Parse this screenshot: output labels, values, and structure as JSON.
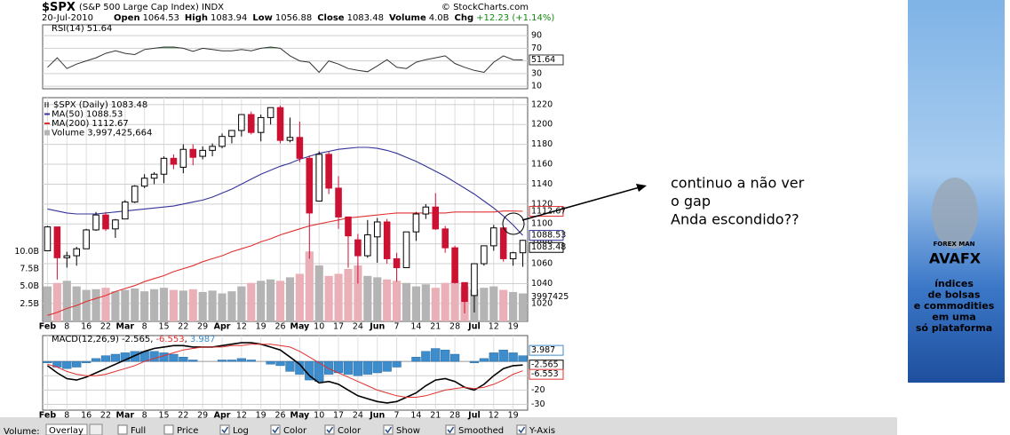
{
  "header": {
    "symbol": "$SPX",
    "name": "(S&P 500 Large Cap Index) INDX",
    "copyright": "© StockCharts.com",
    "date": "20-Jul-2010",
    "quote": [
      {
        "label": "Open",
        "value": "1064.53"
      },
      {
        "label": "High",
        "value": "1083.94"
      },
      {
        "label": "Low",
        "value": "1056.88"
      },
      {
        "label": "Close",
        "value": "1083.48"
      },
      {
        "label": "Volume",
        "value": "4.0B"
      }
    ],
    "change_label": "Chg",
    "change": "+12.23 (+1.14%)"
  },
  "chart_data": [
    {
      "type": "rsi",
      "name": "RSI(14)",
      "color": "#333333",
      "ylim": [
        6,
        107
      ],
      "yticks": [
        10,
        30,
        50,
        70,
        90
      ],
      "grid": true,
      "values": [
        40,
        55,
        38,
        45,
        50,
        55,
        62,
        66,
        62,
        60,
        68,
        70,
        72,
        72,
        70,
        65,
        70,
        68,
        66,
        66,
        68,
        66,
        70,
        72,
        70,
        58,
        50,
        48,
        32,
        50,
        45,
        38,
        35,
        33,
        42,
        52,
        40,
        38,
        48,
        52,
        55,
        58,
        46,
        40,
        35,
        32,
        48,
        58,
        52,
        51.64
      ]
    },
    {
      "type": "candlestick",
      "ylim": [
        1002,
        1227
      ],
      "yticks": [
        1020,
        1040,
        1060,
        1080,
        1100,
        1120,
        1140,
        1160,
        1180,
        1200,
        1220
      ],
      "grid": true,
      "categories": [
        "Feb",
        null,
        "8",
        null,
        "16",
        null,
        "22",
        null,
        "Mar",
        null,
        "8",
        null,
        "15",
        null,
        "22",
        null,
        "29",
        null,
        "Apr",
        null,
        "12",
        null,
        "19",
        null,
        "26",
        null,
        "May",
        null,
        "10",
        null,
        "17",
        null,
        "24",
        null,
        "Jun",
        null,
        "7",
        null,
        "14",
        null,
        "21",
        null,
        "28",
        null,
        "Jul",
        null,
        "12",
        null,
        "19",
        null
      ],
      "candles": {
        "name": "$SPX (Daily)",
        "up_color": "#000000",
        "down_color": "#cc1133",
        "open": [
          1073,
          1097,
          1066,
          1068,
          1075,
          1094,
          1109,
          1095,
          1105,
          1122,
          1138,
          1146,
          1150,
          1166,
          1157,
          1175,
          1168,
          1174,
          1178,
          1188,
          1194,
          1210,
          1192,
          1207,
          1217,
          1184,
          1187,
          1166,
          1123,
          1170,
          1136,
          1107,
          1084,
          1068,
          1087,
          1102,
          1065,
          1056,
          1092,
          1110,
          1117,
          1095,
          1076,
          1041,
          1028,
          1060,
          1078,
          1096,
          1065,
          1071
        ],
        "high": [
          1098,
          1097,
          1072,
          1077,
          1095,
          1112,
          1112,
          1105,
          1124,
          1139,
          1150,
          1152,
          1168,
          1170,
          1180,
          1180,
          1178,
          1181,
          1191,
          1194,
          1210,
          1213,
          1210,
          1217,
          1219,
          1207,
          1203,
          1169,
          1173,
          1173,
          1148,
          1107,
          1090,
          1104,
          1106,
          1105,
          1071,
          1092,
          1112,
          1120,
          1131,
          1098,
          1078,
          1041,
          1042,
          1078,
          1099,
          1097,
          1072,
          1083.94
        ],
        "low": [
          1073,
          1044,
          1056,
          1058,
          1075,
          1093,
          1093,
          1086,
          1105,
          1121,
          1136,
          1140,
          1141,
          1155,
          1151,
          1159,
          1165,
          1168,
          1176,
          1181,
          1188,
          1190,
          1183,
          1200,
          1181,
          1182,
          1162,
          1065,
          1123,
          1130,
          1095,
          1056,
          1040,
          1066,
          1061,
          1060,
          1042,
          1056,
          1083,
          1105,
          1094,
          1071,
          1040,
          1010,
          1011,
          1058,
          1073,
          1062,
          1058,
          1056.88
        ],
        "close": [
          1097,
          1066,
          1068,
          1075,
          1094,
          1109,
          1095,
          1104,
          1122,
          1138,
          1146,
          1150,
          1166,
          1160,
          1175,
          1167,
          1174,
          1178,
          1188,
          1194,
          1210,
          1192,
          1207,
          1217,
          1184,
          1187,
          1166,
          1111,
          1170,
          1136,
          1107,
          1088,
          1068,
          1089,
          1102,
          1065,
          1056,
          1092,
          1110,
          1117,
          1095,
          1076,
          1041,
          1022,
          1060,
          1078,
          1096,
          1065,
          1071,
          1083.48
        ]
      },
      "series": [
        {
          "name": "MA(50)",
          "color": "#333399",
          "values": [
            1115,
            1113,
            1111,
            1110,
            1110,
            1110,
            1111,
            1112,
            1113,
            1114,
            1115,
            1116,
            1117,
            1118,
            1120,
            1122,
            1124,
            1127,
            1131,
            1135,
            1140,
            1145,
            1150,
            1154,
            1158,
            1161,
            1165,
            1168,
            1171,
            1173,
            1175,
            1176,
            1177,
            1177,
            1176,
            1174,
            1171,
            1167,
            1163,
            1158,
            1153,
            1148,
            1142,
            1136,
            1130,
            1123,
            1116,
            1108,
            1099,
            1088.53
          ]
        },
        {
          "name": "MA(200)",
          "color": "#e03030",
          "values": [
            1008,
            1011,
            1015,
            1018,
            1022,
            1025,
            1028,
            1032,
            1035,
            1038,
            1042,
            1045,
            1048,
            1052,
            1055,
            1058,
            1062,
            1065,
            1068,
            1072,
            1075,
            1078,
            1082,
            1085,
            1089,
            1092,
            1095,
            1098,
            1100,
            1102,
            1104,
            1106,
            1107,
            1108,
            1109,
            1110,
            1111,
            1111,
            1111,
            1111,
            1111,
            1111,
            1112,
            1112,
            1112,
            1112,
            1112,
            1113,
            1113,
            1112.67
          ]
        }
      ],
      "volume": {
        "name": "Volume",
        "legend_value": "3,997,425,664",
        "tag": "3997425",
        "up_color": "#b4b4b4",
        "down_color": "#eab0b8",
        "ylim": [
          0,
          32
        ],
        "yticks": [
          {
            "value": 2.5,
            "label": "2.5B"
          },
          {
            "value": 5,
            "label": "5.0B"
          },
          {
            "value": 7.5,
            "label": "7.5B"
          },
          {
            "value": 10,
            "label": "10.0B"
          }
        ],
        "values": [
          5.0,
          5.5,
          5.8,
          5.0,
          4.5,
          4.6,
          4.8,
          4.3,
          4.5,
          4.7,
          4.3,
          4.6,
          4.8,
          4.5,
          4.4,
          4.6,
          4.2,
          4.4,
          4.0,
          4.3,
          5.0,
          5.5,
          5.8,
          6.0,
          5.8,
          6.3,
          6.8,
          10.0,
          8.0,
          6.5,
          6.8,
          7.5,
          8.0,
          6.5,
          6.3,
          6.0,
          5.8,
          5.5,
          5.0,
          5.3,
          4.8,
          5.5,
          5.8,
          5.0,
          4.6,
          4.8,
          5.0,
          4.5,
          4.2,
          4.0
        ]
      }
    },
    {
      "type": "macd",
      "name": "MACD(12,26,9)",
      "legend_separator": ",",
      "ylim": [
        -34,
        18
      ],
      "yticks": [
        -10,
        -20,
        -30
      ],
      "grid": true,
      "categories": [
        "Feb",
        null,
        "8",
        null,
        "16",
        null,
        "22",
        null,
        "Mar",
        null,
        "8",
        null,
        "15",
        null,
        "22",
        null,
        "29",
        null,
        "Apr",
        null,
        "12",
        null,
        "19",
        null,
        "26",
        null,
        "May",
        null,
        "10",
        null,
        "17",
        null,
        "24",
        null,
        "Jun",
        null,
        "7",
        null,
        "14",
        null,
        "21",
        null,
        "28",
        null,
        "Jul",
        null,
        "12",
        null,
        "19",
        null
      ],
      "series": [
        {
          "name": "MACD",
          "color": "#000000",
          "values": [
            -3,
            -8,
            -12,
            -13,
            -11,
            -8,
            -5,
            -2,
            1,
            4,
            7,
            9,
            10,
            11,
            11,
            10,
            10,
            10,
            11,
            12,
            13,
            13,
            12,
            10,
            8,
            3,
            -2,
            -10,
            -15,
            -14,
            -16,
            -20,
            -24,
            -26,
            -28,
            -29,
            -28,
            -25,
            -22,
            -17,
            -13,
            -12,
            -14,
            -18,
            -20,
            -16,
            -10,
            -5,
            -3,
            -2.565
          ]
        },
        {
          "name": "Signal",
          "color": "#e03030",
          "values": [
            -2,
            -4,
            -7,
            -9,
            -10,
            -10,
            -9,
            -7,
            -5,
            -3,
            0,
            2,
            4,
            6,
            8,
            9,
            10,
            10,
            10,
            11,
            11,
            12,
            12,
            12,
            11,
            10,
            7,
            3,
            -1,
            -5,
            -8,
            -11,
            -14,
            -17,
            -20,
            -22,
            -24,
            -25,
            -25,
            -24,
            -22,
            -20,
            -19,
            -18,
            -19,
            -18,
            -16,
            -13,
            -9,
            -6.553
          ]
        }
      ],
      "histogram": {
        "name": "Histogram",
        "color": "#3d8ccc",
        "values": [
          -1,
          -4,
          -5,
          -4,
          -1,
          2,
          4,
          5,
          6,
          7,
          7,
          7,
          6,
          5,
          3,
          1,
          0,
          0,
          1,
          1,
          2,
          1,
          0,
          -2,
          -3,
          -7,
          -9,
          -13,
          -14,
          -9,
          -8,
          -9,
          -10,
          -9,
          -8,
          -7,
          -4,
          0,
          3,
          7,
          9,
          8,
          5,
          0,
          -1,
          2,
          6,
          8,
          6,
          3.987
        ]
      }
    }
  ],
  "annotation": {
    "lines": [
      "continuo a não ver",
      "o gap",
      "Anda escondido??"
    ]
  },
  "controls": {
    "volume_label": "Volume:",
    "volume_select": "Overlay",
    "options": [
      {
        "label": "Full",
        "checked": false
      },
      {
        "label": "Price",
        "checked": false
      },
      {
        "label": "Log",
        "checked": true
      },
      {
        "label": "Color",
        "checked": true
      },
      {
        "label": "Color",
        "checked": true
      },
      {
        "label": "Show",
        "checked": true
      },
      {
        "label": "Smoothed",
        "checked": true
      },
      {
        "label": "Y-Axis",
        "checked": true
      }
    ]
  },
  "ad": {
    "badge": "FOREX MAN",
    "brand": "AVAFX",
    "lines": [
      "índices",
      "de bolsas",
      "e commodities",
      "em uma",
      "só plataforma"
    ]
  }
}
